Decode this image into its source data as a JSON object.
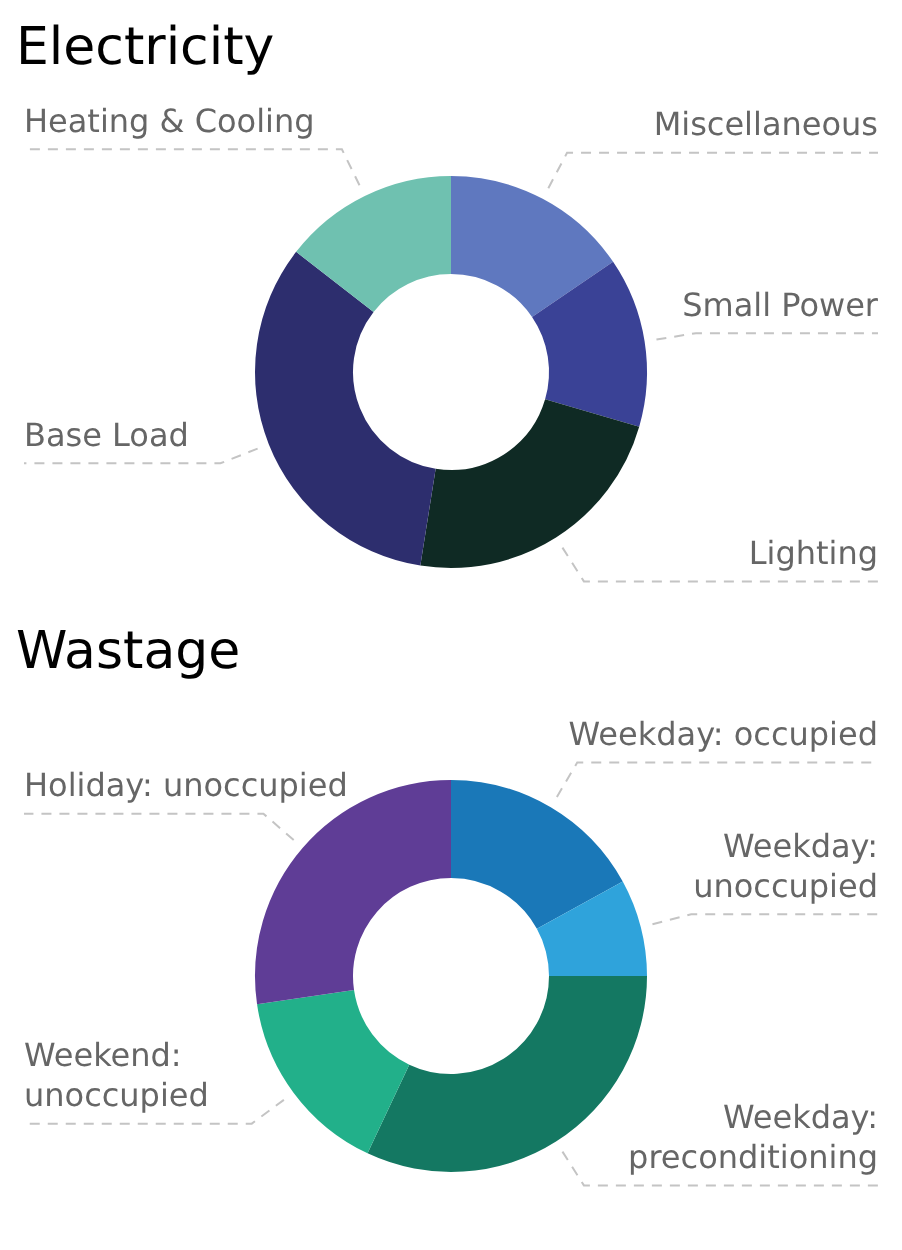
{
  "chart_data": [
    {
      "type": "donut",
      "title": "Electricity",
      "categories": [
        "Miscellaneous",
        "Small Power",
        "Lighting",
        "Base Load",
        "Heating & Cooling"
      ],
      "values": [
        15.5,
        14,
        23,
        33,
        14.5
      ],
      "colors": [
        "#5f78bf",
        "#3a4296",
        "#0f2a24",
        "#2d2e6e",
        "#6fc1b0"
      ]
    },
    {
      "type": "donut",
      "title": "Wastage",
      "categories": [
        "Weekday: occupied",
        "Weekday: unoccupied",
        "Weekday: preconditioning",
        "Weekend: unoccupied",
        "Holiday: unoccupied"
      ],
      "values": [
        17,
        8,
        32,
        15.7,
        27.3
      ],
      "colors": [
        "#1a78b8",
        "#2fa3db",
        "#147862",
        "#22b08a",
        "#5f3d96"
      ]
    }
  ]
}
